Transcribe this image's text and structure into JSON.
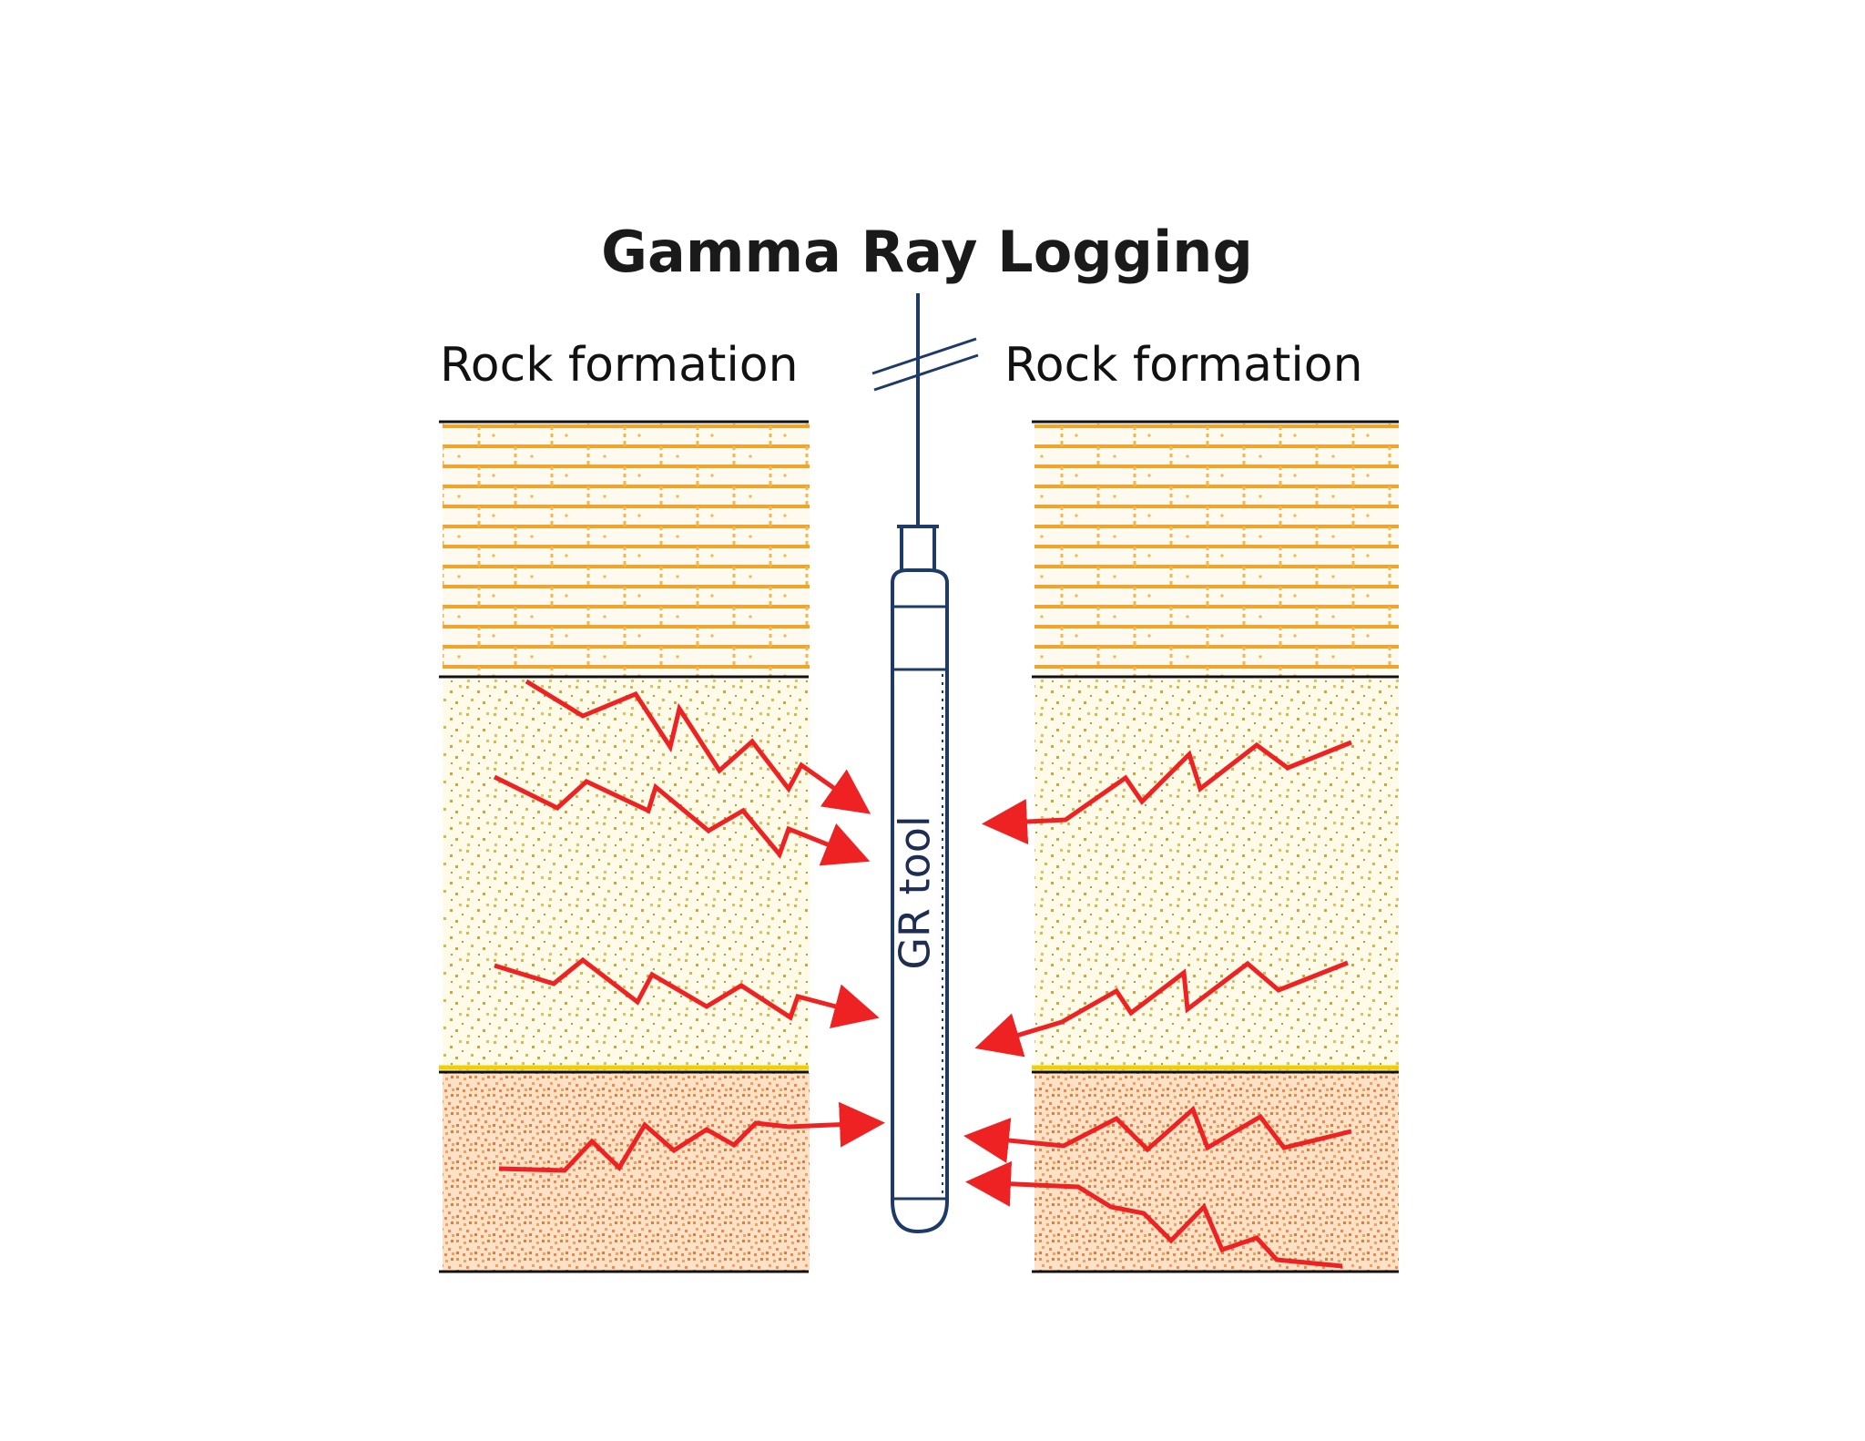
{
  "diagram": {
    "title": "Gamma Ray Logging",
    "left_label": "Rock formation",
    "right_label": "Rock formation",
    "tool_label": "GR tool"
  },
  "colors": {
    "background": "#ffffff",
    "limestone": "#f0a42a",
    "sandstone": "#d8b84a",
    "shale": "#f0955a",
    "rays": "#ee2222",
    "wireline": "#1e3a66",
    "boundary": "#111111"
  },
  "layers": [
    {
      "name": "limestone-layer",
      "pattern": "brick"
    },
    {
      "name": "sandstone-layer",
      "pattern": "dots"
    },
    {
      "name": "shale-layer",
      "pattern": "dense-dots"
    }
  ]
}
